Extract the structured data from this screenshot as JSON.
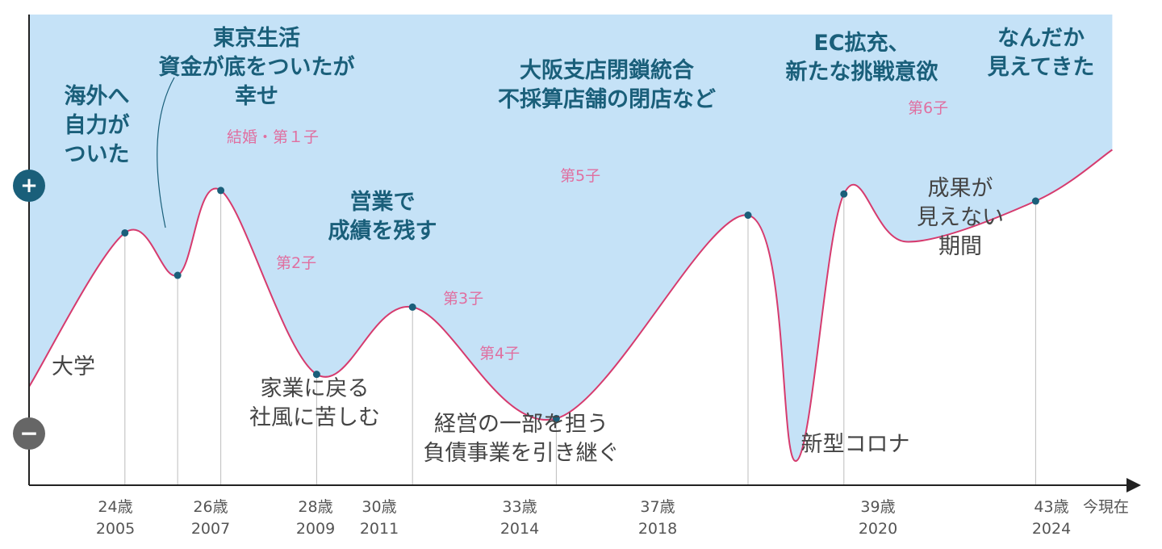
{
  "chart_data": {
    "type": "line",
    "title": "",
    "xlabel": "今現在",
    "ylabel": "",
    "y_markers": [
      "+",
      "−"
    ],
    "colors": {
      "fill": "#c5e2f7",
      "line": "#d63b6e",
      "marker": "#1a5f7a",
      "axis": "#222222",
      "plus": "#1a5f7a",
      "minus": "#666666"
    },
    "ylim": [
      -100,
      100
    ],
    "x_ticks": [
      {
        "age": "24歳",
        "year": "2005"
      },
      {
        "age": "26歳",
        "year": "2007"
      },
      {
        "age": "28歳",
        "year": "2009"
      },
      {
        "age": "30歳",
        "year": "2011"
      },
      {
        "age": "33歳",
        "year": "2014"
      },
      {
        "age": "37歳",
        "year": "2018"
      },
      {
        "age": "39歳",
        "year": "2020"
      },
      {
        "age": "43歳",
        "year": "2024"
      }
    ],
    "series": [
      {
        "points": [
          {
            "x": 2003.0,
            "y": -42
          },
          {
            "x": 2005.0,
            "y": 45
          },
          {
            "x": 2006.1,
            "y": 21
          },
          {
            "x": 2007.0,
            "y": 69
          },
          {
            "x": 2009.0,
            "y": -35
          },
          {
            "x": 2011.0,
            "y": 3
          },
          {
            "x": 2014.0,
            "y": -60
          },
          {
            "x": 2018.0,
            "y": 55
          },
          {
            "x": 2019.0,
            "y": -84
          },
          {
            "x": 2020.0,
            "y": 67
          },
          {
            "x": 2021.3,
            "y": 40
          },
          {
            "x": 2024.0,
            "y": 63
          },
          {
            "x": 2025.6,
            "y": 92
          }
        ],
        "markers": [
          {
            "x": 2005.0,
            "y": 45
          },
          {
            "x": 2006.1,
            "y": 21
          },
          {
            "x": 2007.0,
            "y": 69
          },
          {
            "x": 2009.0,
            "y": -35
          },
          {
            "x": 2011.0,
            "y": 3
          },
          {
            "x": 2014.0,
            "y": -60
          },
          {
            "x": 2018.0,
            "y": 55
          },
          {
            "x": 2020.0,
            "y": 67
          },
          {
            "x": 2024.0,
            "y": 63
          }
        ]
      }
    ],
    "annotations": [
      {
        "lines": [
          "海外へ",
          "自力が",
          "ついた"
        ],
        "style": "blue"
      },
      {
        "lines": [
          "東京生活",
          "資金が底をついたが",
          "幸せ"
        ],
        "style": "blue"
      },
      {
        "lines": [
          "結婚・第１子"
        ],
        "style": "pink"
      },
      {
        "lines": [
          "営業で",
          "成績を残す"
        ],
        "style": "blue"
      },
      {
        "lines": [
          "大阪支店閉鎖統合",
          "不採算店舗の閉店など"
        ],
        "style": "blue"
      },
      {
        "lines": [
          "EC拡充、",
          "新たな挑戦意欲"
        ],
        "style": "blue"
      },
      {
        "lines": [
          "なんだか",
          "見えてきた"
        ],
        "style": "blue"
      },
      {
        "lines": [
          "第6子"
        ],
        "style": "pink"
      },
      {
        "lines": [
          "第5子"
        ],
        "style": "pink"
      },
      {
        "lines": [
          "第2子"
        ],
        "style": "pink"
      },
      {
        "lines": [
          "第3子"
        ],
        "style": "pink"
      },
      {
        "lines": [
          "第4子"
        ],
        "style": "pink"
      },
      {
        "lines": [
          "大学"
        ],
        "style": "gray"
      },
      {
        "lines": [
          "家業に戻る",
          "社風に苦しむ"
        ],
        "style": "gray"
      },
      {
        "lines": [
          "経営の一部を担う",
          "負債事業を引き継ぐ"
        ],
        "style": "gray"
      },
      {
        "lines": [
          "新型コロナ"
        ],
        "style": "gray"
      },
      {
        "lines": [
          "成果が",
          "見えない",
          "期間"
        ],
        "style": "gray"
      }
    ]
  }
}
